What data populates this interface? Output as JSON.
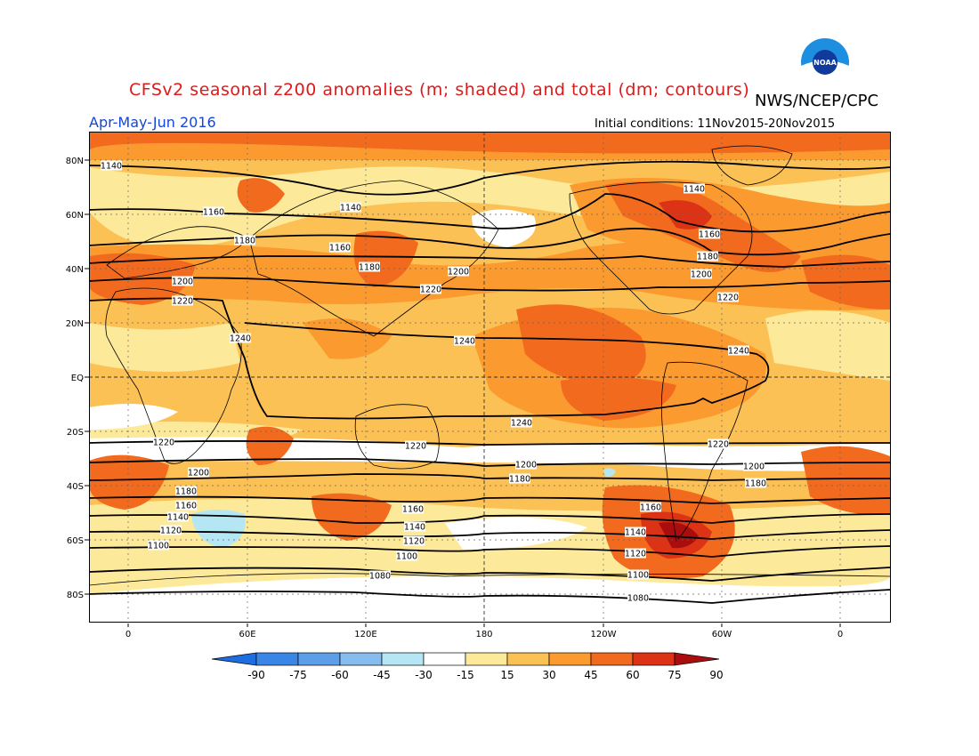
{
  "header": {
    "title": "CFSv2 seasonal z200 anomalies (m; shaded) and total (dm; contours)",
    "agency": "NWS/NCEP/CPC",
    "season": "Apr-May-Jun 2016",
    "initial_conditions": "Initial conditions: 11Nov2015-20Nov2015",
    "logo_text": "NOAA"
  },
  "map": {
    "lat_labels": [
      "80N",
      "60N",
      "40N",
      "20N",
      "EQ",
      "20S",
      "40S",
      "60S",
      "80S"
    ],
    "lon_labels": [
      "0",
      "60E",
      "120E",
      "180",
      "120W",
      "60W",
      "0"
    ],
    "contour_labels": [
      {
        "text": "1140"
      },
      {
        "text": "1160"
      },
      {
        "text": "1180"
      },
      {
        "text": "1200"
      },
      {
        "text": "1220"
      },
      {
        "text": "1240"
      },
      {
        "text": "1140"
      },
      {
        "text": "1160"
      },
      {
        "text": "1180"
      },
      {
        "text": "1200"
      },
      {
        "text": "1220"
      },
      {
        "text": "1240"
      },
      {
        "text": "1140"
      },
      {
        "text": "1160"
      },
      {
        "text": "1180"
      },
      {
        "text": "1200"
      },
      {
        "text": "1220"
      },
      {
        "text": "1240"
      },
      {
        "text": "1240"
      },
      {
        "text": "1220"
      },
      {
        "text": "1200"
      },
      {
        "text": "1180"
      },
      {
        "text": "1160"
      },
      {
        "text": "1140"
      },
      {
        "text": "1120"
      },
      {
        "text": "1100"
      },
      {
        "text": "1220"
      },
      {
        "text": "1200"
      },
      {
        "text": "1180"
      },
      {
        "text": "1160"
      },
      {
        "text": "1140"
      },
      {
        "text": "1120"
      },
      {
        "text": "1100"
      },
      {
        "text": "1080"
      },
      {
        "text": "1220"
      },
      {
        "text": "1200"
      },
      {
        "text": "1180"
      },
      {
        "text": "1160"
      },
      {
        "text": "1140"
      },
      {
        "text": "1120"
      },
      {
        "text": "1100"
      },
      {
        "text": "1080"
      }
    ]
  },
  "colorbar": {
    "labels": [
      "-90",
      "-75",
      "-60",
      "-45",
      "-30",
      "-15",
      "15",
      "30",
      "45",
      "60",
      "75",
      "90"
    ],
    "colors": [
      "#1e6ee0",
      "#3a86e6",
      "#5c9ee8",
      "#86bdef",
      "#b4e6f4",
      "#ffffff",
      "#fde99a",
      "#fcc154",
      "#fb9a2e",
      "#f26a1e",
      "#dc3216",
      "#aa0d0d"
    ]
  },
  "colors": {
    "title": "#e01818",
    "season": "#1646d8",
    "bg_shade": "#fcc154"
  }
}
